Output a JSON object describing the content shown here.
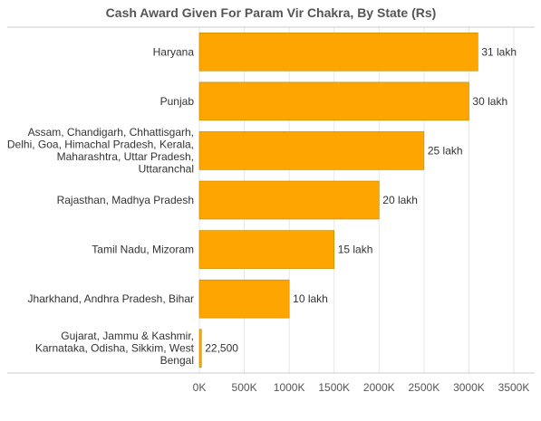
{
  "chart_data": {
    "type": "bar",
    "orientation": "horizontal",
    "title": "Cash Award Given For Param Vir Chakra, By State (Rs)",
    "xlabel": "",
    "ylabel": "",
    "xlim": [
      0,
      3500000
    ],
    "x_ticks": [
      {
        "value": 0,
        "label": "0K"
      },
      {
        "value": 500000,
        "label": "500K"
      },
      {
        "value": 1000000,
        "label": "1000K"
      },
      {
        "value": 1500000,
        "label": "1500K"
      },
      {
        "value": 2000000,
        "label": "2000K"
      },
      {
        "value": 2500000,
        "label": "2500K"
      },
      {
        "value": 3000000,
        "label": "3000K"
      },
      {
        "value": 3500000,
        "label": "3500K"
      }
    ],
    "grid": true,
    "bar_color": "#FFA500",
    "categories": [
      [
        "Haryana"
      ],
      [
        "Punjab"
      ],
      [
        "Assam, Chandigarh, Chhattisgarh,",
        "Delhi, Goa, Himachal Pradesh, Kerala,",
        "Maharashtra, Uttar Pradesh,",
        "Uttaranchal"
      ],
      [
        "Rajasthan, Madhya Pradesh"
      ],
      [
        "Tamil Nadu, Mizoram"
      ],
      [
        "Jharkhand, Andhra Pradesh, Bihar"
      ],
      [
        "Gujarat, Jammu & Kashmir,",
        "Karnataka, Odisha, Sikkim, West",
        "Bengal"
      ]
    ],
    "values": [
      3100000,
      3000000,
      2500000,
      2000000,
      1500000,
      1000000,
      22500
    ],
    "value_labels": [
      "31 lakh",
      "30 lakh",
      "25 lakh",
      "20 lakh",
      "15 lakh",
      "10 lakh",
      "22,500"
    ]
  }
}
